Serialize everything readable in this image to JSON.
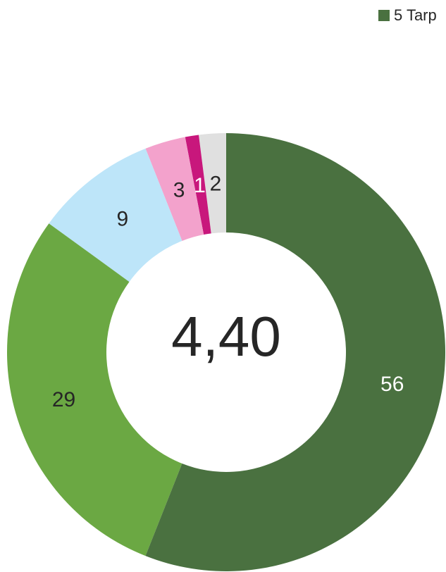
{
  "chart_data": {
    "type": "donut",
    "categories": [
      "5 Tarp",
      null,
      null,
      null,
      null,
      null
    ],
    "values": [
      56,
      29,
      9,
      3,
      1,
      2
    ],
    "colors": [
      "#4a7140",
      "#6ba843",
      "#bde5f9",
      "#f3a2cc",
      "#c8177c",
      "#e0e0e0"
    ],
    "label_colors": [
      "#ffffff",
      "#262626",
      "#262626",
      "#262626",
      "#ffffff",
      "#262626"
    ],
    "center_label": "4,40",
    "legend": "top-right"
  }
}
